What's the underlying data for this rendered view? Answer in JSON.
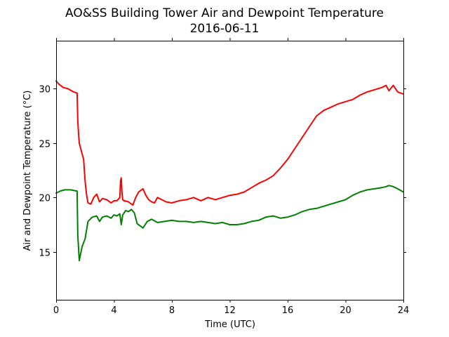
{
  "chart_data": {
    "type": "line",
    "title": "AO&SS Building Tower Air and Dewpoint Temperature",
    "subtitle": "2016-06-11",
    "xlabel": "Time (UTC)",
    "ylabel": "Air and Dewpoint Temperature (°C)",
    "xlim": [
      0,
      24
    ],
    "ylim": [
      10.6,
      34.4
    ],
    "xticks": [
      0,
      4,
      8,
      12,
      16,
      20,
      24
    ],
    "xtick_labels": [
      "0",
      "4",
      "8",
      "12",
      "16",
      "20",
      "24"
    ],
    "yticks": [
      15,
      20,
      25,
      30
    ],
    "ytick_labels": [
      "15",
      "20",
      "25",
      "30"
    ],
    "grid": false,
    "series": [
      {
        "color": "#ff0000",
        "x": [
          0,
          0.2,
          0.5,
          0.8,
          1.2,
          1.45,
          1.5,
          1.55,
          1.6,
          1.8,
          1.9,
          2.0,
          2.1,
          2.2,
          2.4,
          2.6,
          2.8,
          3.0,
          3.2,
          3.5,
          3.8,
          4.0,
          4.2,
          4.4,
          4.45,
          4.5,
          4.55,
          4.6,
          4.7,
          5.0,
          5.3,
          5.5,
          5.7,
          6.0,
          6.2,
          6.4,
          6.6,
          6.8,
          7.0,
          7.3,
          7.6,
          8.0,
          8.5,
          9.0,
          9.5,
          10.0,
          10.5,
          11.0,
          11.5,
          12.0,
          12.5,
          13.0,
          13.5,
          14.0,
          14.5,
          15.0,
          15.5,
          16.0,
          16.5,
          17.0,
          17.5,
          18.0,
          18.5,
          19.0,
          19.5,
          20.0,
          20.5,
          21.0,
          21.5,
          22.0,
          22.5,
          22.8,
          23.0,
          23.3,
          23.6,
          24.0
        ],
        "y": [
          30.7,
          30.4,
          30.1,
          30.0,
          29.7,
          29.6,
          27.0,
          25.8,
          25.0,
          24.0,
          23.5,
          21.5,
          20.3,
          19.5,
          19.4,
          20.0,
          20.3,
          19.6,
          19.9,
          19.8,
          19.5,
          19.7,
          19.7,
          20.0,
          21.5,
          21.8,
          20.5,
          19.8,
          19.7,
          19.6,
          19.3,
          20.0,
          20.5,
          20.8,
          20.2,
          19.8,
          19.6,
          19.5,
          20.0,
          19.8,
          19.6,
          19.5,
          19.7,
          19.8,
          20.0,
          19.7,
          20.0,
          19.8,
          20.0,
          20.2,
          20.3,
          20.5,
          20.9,
          21.3,
          21.6,
          22.0,
          22.7,
          23.5,
          24.5,
          25.5,
          26.5,
          27.5,
          28.0,
          28.3,
          28.6,
          28.8,
          29.0,
          29.4,
          29.7,
          29.9,
          30.1,
          30.3,
          29.8,
          30.3,
          29.7,
          29.5
        ]
      },
      {
        "color": "#008000",
        "x": [
          0,
          0.3,
          0.6,
          1.0,
          1.4,
          1.45,
          1.5,
          1.6,
          1.8,
          2.0,
          2.2,
          2.5,
          2.8,
          3.0,
          3.2,
          3.5,
          3.8,
          4.0,
          4.2,
          4.4,
          4.5,
          4.6,
          4.8,
          5.0,
          5.2,
          5.4,
          5.6,
          5.8,
          6.0,
          6.3,
          6.6,
          7.0,
          7.5,
          8.0,
          8.5,
          9.0,
          9.5,
          10.0,
          10.5,
          11.0,
          11.5,
          12.0,
          12.5,
          13.0,
          13.5,
          14.0,
          14.5,
          15.0,
          15.5,
          16.0,
          16.5,
          17.0,
          17.5,
          18.0,
          18.5,
          19.0,
          19.5,
          20.0,
          20.5,
          21.0,
          21.5,
          22.0,
          22.5,
          22.8,
          23.0,
          23.3,
          23.6,
          24.0
        ],
        "y": [
          20.4,
          20.6,
          20.7,
          20.7,
          20.6,
          20.6,
          16.5,
          14.2,
          15.5,
          16.2,
          17.8,
          18.2,
          18.3,
          17.8,
          18.2,
          18.3,
          18.1,
          18.4,
          18.3,
          18.5,
          17.5,
          18.4,
          18.8,
          18.7,
          18.9,
          18.6,
          17.6,
          17.4,
          17.2,
          17.8,
          18.0,
          17.7,
          17.8,
          17.9,
          17.8,
          17.8,
          17.7,
          17.8,
          17.7,
          17.6,
          17.7,
          17.5,
          17.5,
          17.6,
          17.8,
          17.9,
          18.2,
          18.3,
          18.1,
          18.2,
          18.4,
          18.7,
          18.9,
          19.0,
          19.2,
          19.4,
          19.6,
          19.8,
          20.2,
          20.5,
          20.7,
          20.8,
          20.9,
          21.0,
          21.1,
          21.0,
          20.8,
          20.5
        ]
      }
    ]
  }
}
